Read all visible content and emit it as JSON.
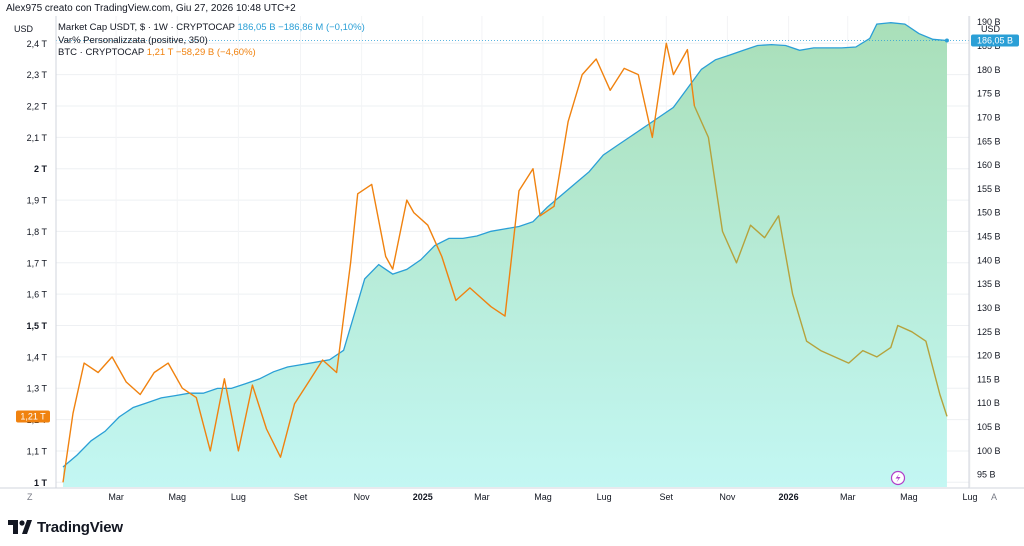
{
  "header": {
    "text": "Alex975 creato con TradingView.com, Giu 27, 2026 10:48 UTC+2"
  },
  "legend": {
    "line1_label": "Market Cap USDT, $ · 1W · CRYPTOCAP",
    "line1_values": "186,05 B  −186,86 M (−0,10%)",
    "line2_label": "Var% Personalizzata (positive, 350)",
    "line3_label": "BTC · CRYPTOCAP",
    "line3_values": "1,21 T  −58,29 B (−4,60%)"
  },
  "axis_units": {
    "left": "USD",
    "right": "USD"
  },
  "corners": {
    "left": "Z",
    "right": "A"
  },
  "brand": {
    "name": "TradingView"
  },
  "colors": {
    "usdt_line": "#2a9fd6",
    "btc_line": "#f0820f",
    "btc_line_late": "#b5a23c",
    "fill_top": "#a9dfb9",
    "fill_bottom": "#c3f7f3"
  },
  "chart_data": {
    "type": "line",
    "x_ticks": [
      "Mar",
      "Mag",
      "Lug",
      "Set",
      "Nov",
      "2025",
      "Mar",
      "Mag",
      "Lug",
      "Set",
      "Nov",
      "2026",
      "Mar",
      "Mag",
      "Lug"
    ],
    "x_ticks_bold": [
      "2025",
      "2026"
    ],
    "left_axis": {
      "label": "USD",
      "ticks": [
        {
          "v": 1.0,
          "label": "1 T"
        },
        {
          "v": 1.1,
          "label": "1,1 T"
        },
        {
          "v": 1.2,
          "label": "1,2 T"
        },
        {
          "v": 1.3,
          "label": "1,3 T"
        },
        {
          "v": 1.4,
          "label": "1,4 T"
        },
        {
          "v": 1.5,
          "label": "1,5 T"
        },
        {
          "v": 1.6,
          "label": "1,6 T"
        },
        {
          "v": 1.7,
          "label": "1,7 T"
        },
        {
          "v": 1.8,
          "label": "1,8 T"
        },
        {
          "v": 1.9,
          "label": "1,9 T"
        },
        {
          "v": 2.0,
          "label": "2 T"
        },
        {
          "v": 2.1,
          "label": "2,1 T"
        },
        {
          "v": 2.2,
          "label": "2,2 T"
        },
        {
          "v": 2.3,
          "label": "2,3 T"
        },
        {
          "v": 2.4,
          "label": "2,4 T"
        }
      ],
      "bold_ticks": [
        "1 T",
        "1,5 T",
        "2 T"
      ],
      "range": [
        0.985,
        2.487
      ]
    },
    "right_axis": {
      "label": "USD",
      "ticks": [
        {
          "v": 95,
          "label": "95 B"
        },
        {
          "v": 100,
          "label": "100 B"
        },
        {
          "v": 105,
          "label": "105 B"
        },
        {
          "v": 110,
          "label": "110 B"
        },
        {
          "v": 115,
          "label": "115 B"
        },
        {
          "v": 120,
          "label": "120 B"
        },
        {
          "v": 125,
          "label": "125 B"
        },
        {
          "v": 130,
          "label": "130 B"
        },
        {
          "v": 135,
          "label": "135 B"
        },
        {
          "v": 140,
          "label": "140 B"
        },
        {
          "v": 145,
          "label": "145 B"
        },
        {
          "v": 150,
          "label": "150 B"
        },
        {
          "v": 155,
          "label": "155 B"
        },
        {
          "v": 160,
          "label": "160 B"
        },
        {
          "v": 165,
          "label": "165 B"
        },
        {
          "v": 170,
          "label": "170 B"
        },
        {
          "v": 175,
          "label": "175 B"
        },
        {
          "v": 180,
          "label": "180 B"
        },
        {
          "v": 185,
          "label": "185 B"
        },
        {
          "v": 190,
          "label": "190 B"
        }
      ],
      "range": [
        92.3,
        191.2
      ]
    },
    "price_labels": {
      "btc": "1,21 T",
      "usdt": "186,05 B"
    },
    "series": [
      {
        "name": "Market Cap USDT",
        "axis": "right",
        "x": [
          "2024-01-22",
          "2024-02-05",
          "2024-02-19",
          "2024-03-04",
          "2024-03-18",
          "2024-04-01",
          "2024-04-15",
          "2024-04-29",
          "2024-05-13",
          "2024-05-27",
          "2024-06-10",
          "2024-06-24",
          "2024-07-08",
          "2024-07-22",
          "2024-08-05",
          "2024-08-19",
          "2024-09-02",
          "2024-09-16",
          "2024-09-30",
          "2024-10-14",
          "2024-10-28",
          "2024-11-11",
          "2024-11-18",
          "2024-12-02",
          "2024-12-16",
          "2024-12-30",
          "2025-01-13",
          "2025-01-27",
          "2025-02-10",
          "2025-02-24",
          "2025-03-10",
          "2025-03-24",
          "2025-04-07",
          "2025-04-21",
          "2025-05-05",
          "2025-05-19",
          "2025-06-02",
          "2025-06-16",
          "2025-06-30",
          "2025-07-14",
          "2025-07-28",
          "2025-08-11",
          "2025-08-25",
          "2025-09-08",
          "2025-09-22",
          "2025-10-06",
          "2025-10-20",
          "2025-11-03",
          "2025-11-17",
          "2025-12-01",
          "2025-12-15",
          "2025-12-29",
          "2026-01-12",
          "2026-01-26",
          "2026-02-09",
          "2026-02-23",
          "2026-03-09",
          "2026-03-23",
          "2026-04-06",
          "2026-04-13",
          "2026-04-27",
          "2026-05-11",
          "2026-05-25",
          "2026-06-08",
          "2026-06-22"
        ],
        "values": [
          96.5,
          99,
          102,
          104,
          107,
          109,
          110,
          111,
          111.5,
          112,
          112,
          113,
          113,
          114,
          115,
          116.5,
          117.5,
          118,
          118.5,
          119,
          121,
          131,
          136,
          139,
          137,
          138,
          140,
          143,
          144.5,
          144.5,
          145,
          146,
          146.5,
          147,
          148,
          151,
          153.5,
          156,
          158.5,
          162,
          164,
          166,
          168,
          170,
          172,
          176,
          180,
          182,
          183,
          184,
          185,
          185.2,
          185,
          184,
          184.5,
          184.5,
          184.5,
          184.7,
          186.5,
          189.5,
          189.8,
          189.5,
          187.5,
          186.3,
          186.05
        ]
      },
      {
        "name": "BTC",
        "axis": "left",
        "x": [
          "2024-01-22",
          "2024-02-01",
          "2024-02-12",
          "2024-02-26",
          "2024-03-11",
          "2024-03-25",
          "2024-04-08",
          "2024-04-22",
          "2024-05-06",
          "2024-05-20",
          "2024-06-03",
          "2024-06-17",
          "2024-07-01",
          "2024-07-15",
          "2024-07-29",
          "2024-08-12",
          "2024-08-26",
          "2024-09-09",
          "2024-09-23",
          "2024-10-07",
          "2024-10-21",
          "2024-11-04",
          "2024-11-11",
          "2024-11-25",
          "2024-12-09",
          "2024-12-16",
          "2024-12-30",
          "2025-01-06",
          "2025-01-20",
          "2025-02-03",
          "2025-02-17",
          "2025-03-03",
          "2025-03-10",
          "2025-03-24",
          "2025-04-07",
          "2025-04-21",
          "2025-05-05",
          "2025-05-12",
          "2025-05-26",
          "2025-06-09",
          "2025-06-23",
          "2025-07-07",
          "2025-07-21",
          "2025-08-04",
          "2025-08-18",
          "2025-09-01",
          "2025-09-15",
          "2025-09-22",
          "2025-10-06",
          "2025-10-13",
          "2025-10-27",
          "2025-11-10",
          "2025-11-24",
          "2025-12-08",
          "2025-12-22",
          "2026-01-05",
          "2026-01-19",
          "2026-02-02",
          "2026-02-16",
          "2026-03-02",
          "2026-03-16",
          "2026-03-30",
          "2026-04-13",
          "2026-04-27",
          "2026-05-04",
          "2026-05-18",
          "2026-06-01",
          "2026-06-15",
          "2026-06-22"
        ],
        "values": [
          1.0,
          1.22,
          1.38,
          1.35,
          1.4,
          1.32,
          1.28,
          1.35,
          1.38,
          1.3,
          1.27,
          1.1,
          1.33,
          1.1,
          1.31,
          1.17,
          1.08,
          1.25,
          1.32,
          1.39,
          1.35,
          1.7,
          1.92,
          1.95,
          1.72,
          1.68,
          1.9,
          1.86,
          1.82,
          1.72,
          1.58,
          1.62,
          1.6,
          1.56,
          1.53,
          1.93,
          2.0,
          1.85,
          1.88,
          2.15,
          2.3,
          2.35,
          2.25,
          2.32,
          2.3,
          2.1,
          2.4,
          2.3,
          2.38,
          2.2,
          2.1,
          1.8,
          1.7,
          1.82,
          1.78,
          1.85,
          1.6,
          1.45,
          1.42,
          1.4,
          1.38,
          1.42,
          1.4,
          1.43,
          1.5,
          1.48,
          1.45,
          1.28,
          1.21
        ]
      }
    ]
  }
}
